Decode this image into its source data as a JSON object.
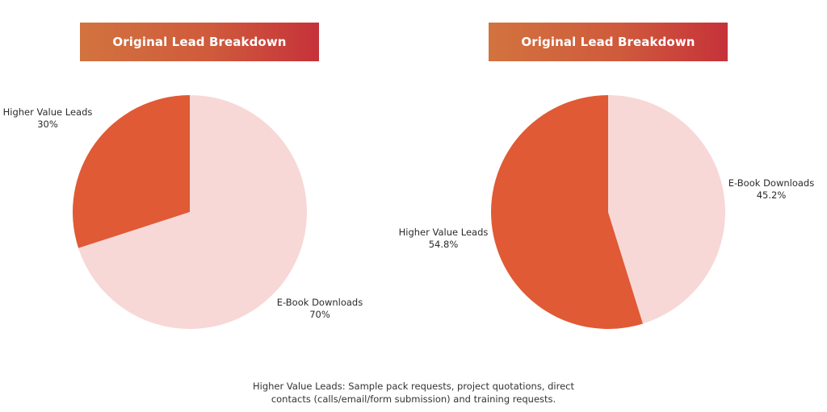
{
  "chart_data": [
    {
      "type": "pie",
      "title": "Original Lead Breakdown",
      "slices": [
        {
          "label": "Higher Value Leads",
          "value": 30,
          "display": "30%",
          "color": "#e05a35"
        },
        {
          "label": "E-Book Downloads",
          "value": 70,
          "display": "70%",
          "color": "#f7d8d7"
        }
      ]
    },
    {
      "type": "pie",
      "title": "Original Lead Breakdown",
      "slices": [
        {
          "label": "Higher Value Leads",
          "value": 54.8,
          "display": "54.8%",
          "color": "#e05a35"
        },
        {
          "label": "E-Book Downloads",
          "value": 45.2,
          "display": "45.2%",
          "color": "#f7d8d7"
        }
      ]
    }
  ],
  "footnote": {
    "line1": "Higher Value Leads: Sample pack requests, project quotations, direct",
    "line2": "contacts (calls/email/form submission) and training requests."
  }
}
